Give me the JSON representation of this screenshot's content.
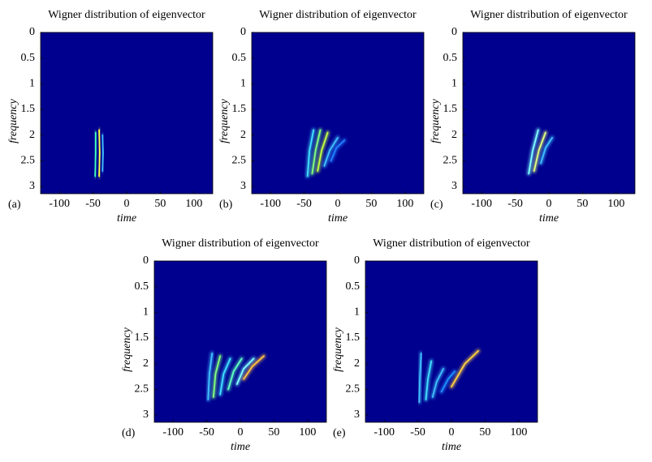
{
  "chart_data": [
    {
      "type": "heatmap",
      "title": "Wigner distribution of eigenvector",
      "panel_label": "(a)",
      "xlabel": "time",
      "ylabel": "frequency",
      "xlim": [
        -128,
        128
      ],
      "ylim": [
        0,
        3.1416
      ],
      "y_reversed": true,
      "xticks": [
        -100,
        -50,
        0,
        50,
        100
      ],
      "yticks": [
        0,
        0.5,
        1,
        1.5,
        2,
        2.5,
        3
      ],
      "background_color": "#00008f",
      "ridges": [
        {
          "x": [
            -46,
            -46,
            -47
          ],
          "y": [
            1.95,
            2.35,
            2.8
          ],
          "color": "#40ffbf"
        },
        {
          "x": [
            -41,
            -40,
            -41
          ],
          "y": [
            1.9,
            2.35,
            2.8
          ],
          "color": "#ffff40"
        },
        {
          "x": [
            -36,
            -35,
            -36
          ],
          "y": [
            2.0,
            2.35,
            2.7
          ],
          "color": "#40c0ff"
        }
      ]
    },
    {
      "type": "heatmap",
      "title": "Wigner distribution of eigenvector",
      "panel_label": "(b)",
      "xlabel": "time",
      "ylabel": "frequency",
      "xlim": [
        -128,
        128
      ],
      "ylim": [
        0,
        3.1416
      ],
      "y_reversed": true,
      "xticks": [
        -100,
        -50,
        0,
        50,
        100
      ],
      "yticks": [
        0,
        0.5,
        1,
        1.5,
        2,
        2.5,
        3
      ],
      "background_color": "#00008f",
      "ridges": [
        {
          "x": [
            -45,
            -42,
            -36
          ],
          "y": [
            2.8,
            2.3,
            1.9
          ],
          "color": "#40e0ff"
        },
        {
          "x": [
            -38,
            -33,
            -26
          ],
          "y": [
            2.75,
            2.3,
            1.9
          ],
          "color": "#80ff80"
        },
        {
          "x": [
            -30,
            -24,
            -15
          ],
          "y": [
            2.7,
            2.3,
            1.95
          ],
          "color": "#c0ff40"
        },
        {
          "x": [
            -20,
            -12,
            0
          ],
          "y": [
            2.6,
            2.3,
            2.05
          ],
          "color": "#40c0ff"
        },
        {
          "x": [
            -10,
            -2,
            10
          ],
          "y": [
            2.5,
            2.25,
            2.1
          ],
          "color": "#2080ff"
        }
      ]
    },
    {
      "type": "heatmap",
      "title": "Wigner distribution of eigenvector",
      "panel_label": "(c)",
      "xlabel": "time",
      "ylabel": "frequency",
      "xlim": [
        -128,
        128
      ],
      "ylim": [
        0,
        3.1416
      ],
      "y_reversed": true,
      "xticks": [
        -100,
        -50,
        0,
        50,
        100
      ],
      "yticks": [
        0,
        0.5,
        1,
        1.5,
        2,
        2.5,
        3
      ],
      "background_color": "#00008f",
      "ridges": [
        {
          "x": [
            -30,
            -24,
            -16
          ],
          "y": [
            2.75,
            2.3,
            1.9
          ],
          "color": "#80ffff"
        },
        {
          "x": [
            -22,
            -15,
            -5
          ],
          "y": [
            2.7,
            2.3,
            1.95
          ],
          "color": "#e0ff80"
        },
        {
          "x": [
            -12,
            -5,
            5
          ],
          "y": [
            2.55,
            2.25,
            2.05
          ],
          "color": "#40c0ff"
        }
      ]
    },
    {
      "type": "heatmap",
      "title": "Wigner distribution of eigenvector",
      "panel_label": "(d)",
      "xlabel": "time",
      "ylabel": "frequency",
      "xlim": [
        -128,
        128
      ],
      "ylim": [
        0,
        3.1416
      ],
      "y_reversed": true,
      "xticks": [
        -100,
        -50,
        0,
        50,
        100
      ],
      "yticks": [
        0,
        0.5,
        1,
        1.5,
        2,
        2.5,
        3
      ],
      "background_color": "#00008f",
      "ridges": [
        {
          "x": [
            -48,
            -46,
            -42
          ],
          "y": [
            2.7,
            2.2,
            1.8
          ],
          "color": "#40c0ff"
        },
        {
          "x": [
            -40,
            -37,
            -30
          ],
          "y": [
            2.65,
            2.2,
            1.85
          ],
          "color": "#80ff80"
        },
        {
          "x": [
            -30,
            -25,
            -15
          ],
          "y": [
            2.6,
            2.2,
            1.9
          ],
          "color": "#40e0ff"
        },
        {
          "x": [
            -18,
            -10,
            2
          ],
          "y": [
            2.5,
            2.15,
            1.9
          ],
          "color": "#60ffc0"
        },
        {
          "x": [
            -5,
            5,
            20
          ],
          "y": [
            2.4,
            2.1,
            1.9
          ],
          "color": "#80ffff"
        },
        {
          "x": [
            5,
            18,
            35
          ],
          "y": [
            2.3,
            2.05,
            1.85
          ],
          "color": "#ffc040"
        }
      ]
    },
    {
      "type": "heatmap",
      "title": "Wigner distribution of eigenvector",
      "panel_label": "(e)",
      "xlabel": "time",
      "ylabel": "frequency",
      "xlim": [
        -128,
        128
      ],
      "ylim": [
        0,
        3.1416
      ],
      "y_reversed": true,
      "xticks": [
        -100,
        -50,
        0,
        50,
        100
      ],
      "yticks": [
        0,
        0.5,
        1,
        1.5,
        2,
        2.5,
        3
      ],
      "background_color": "#00008f",
      "ridges": [
        {
          "x": [
            -48,
            -47,
            -45
          ],
          "y": [
            2.75,
            2.3,
            1.8
          ],
          "color": "#40c0ff"
        },
        {
          "x": [
            -38,
            -35,
            -30
          ],
          "y": [
            2.7,
            2.3,
            1.95
          ],
          "color": "#40e0ff"
        },
        {
          "x": [
            -28,
            -22,
            -12
          ],
          "y": [
            2.65,
            2.35,
            2.1
          ],
          "color": "#40c0ff"
        },
        {
          "x": [
            -15,
            -5,
            5
          ],
          "y": [
            2.55,
            2.3,
            2.15
          ],
          "color": "#2090ff"
        },
        {
          "x": [
            0,
            20,
            40
          ],
          "y": [
            2.45,
            2.0,
            1.75
          ],
          "color": "#ffd040"
        }
      ]
    }
  ]
}
